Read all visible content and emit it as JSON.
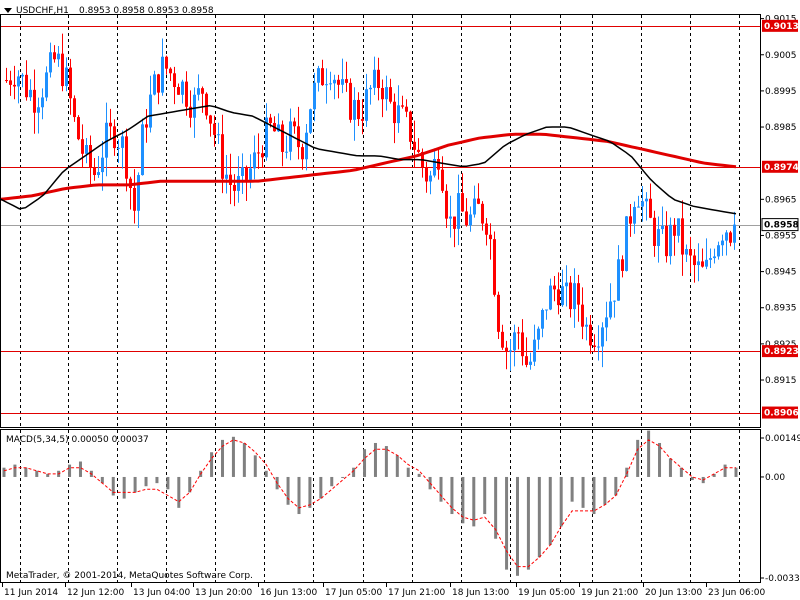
{
  "header": {
    "symbol_label": "USDCHF,H1",
    "ohlc_label": "0.8953 0.8958 0.8953 0.8958",
    "macd_label": "MACD(5,34,5) 0.00050 0.00037",
    "copyright": "MetaTrader, © 2001-2014, MetaQuotes Software Corp."
  },
  "colors": {
    "bull": "#1e90ff",
    "bear": "#ff0000",
    "ma_fast": "#000000",
    "ma_slow": "#e00000",
    "level": "#e00000",
    "grid": "#000000",
    "macd_hist": "#808080",
    "macd_signal": "#ff0000"
  },
  "chart_data": [
    {
      "type": "candlestick",
      "symbol": "USDCHF",
      "timeframe": "H1",
      "ylim": [
        0.8902,
        0.9016
      ],
      "y_ticks": [
        "0.9015",
        "0.9005",
        "0.8995",
        "0.8985",
        "0.8965",
        "0.8955",
        "0.8945",
        "0.8935",
        "0.8925",
        "0.8915"
      ],
      "x_labels": [
        "11 Jun 2014",
        "12 Jun 12:00",
        "13 Jun 04:00",
        "13 Jun 20:00",
        "16 Jun 13:00",
        "17 Jun 05:00",
        "17 Jun 21:00",
        "18 Jun 13:00",
        "19 Jun 05:00",
        "19 Jun 21:00",
        "20 Jun 13:00",
        "23 Jun 06:00"
      ],
      "grid": "vertical dashed",
      "current_price": "0.8958",
      "horizontal_levels": [
        "0.9013",
        "0.8974",
        "0.8923",
        "0.8906"
      ],
      "close_path": [
        0.8998,
        0.9001,
        0.8996,
        0.8993,
        0.8998,
        0.9004,
        0.8999,
        0.8985,
        0.8976,
        0.8972,
        0.8981,
        0.8984,
        0.8979,
        0.8962,
        0.8986,
        0.8996,
        0.9002,
        0.8999,
        0.8996,
        0.8991,
        0.8996,
        0.8985,
        0.8974,
        0.8968,
        0.8969,
        0.8974,
        0.8981,
        0.8985,
        0.8979,
        0.8983,
        0.8979,
        0.8993,
        0.8999,
        0.9002,
        0.8995,
        0.8991,
        0.8989,
        0.8995,
        0.8998,
        0.8991,
        0.8988,
        0.8984,
        0.8976,
        0.897,
        0.8979,
        0.8958,
        0.8962,
        0.8959,
        0.8962,
        0.8959,
        0.8932,
        0.8922,
        0.8929,
        0.8918,
        0.8926,
        0.8938,
        0.8941,
        0.8937,
        0.8938,
        0.8929,
        0.8928,
        0.8935,
        0.8942,
        0.8955,
        0.8969,
        0.8961,
        0.8955,
        0.8952,
        0.8958,
        0.8949,
        0.8946,
        0.8944,
        0.8953,
        0.8958,
        0.8955
      ],
      "ma_fast_path": [
        0.8965,
        0.8962,
        0.8966,
        0.8973,
        0.8977,
        0.8981,
        0.8984,
        0.8988,
        0.8989,
        0.899,
        0.8991,
        0.8989,
        0.8988,
        0.8985,
        0.8982,
        0.8979,
        0.8978,
        0.8977,
        0.8977,
        0.8976,
        0.8976,
        0.8975,
        0.8974,
        0.8975,
        0.898,
        0.8983,
        0.8985,
        0.8985,
        0.8983,
        0.8981,
        0.8977,
        0.897,
        0.8965,
        0.8963,
        0.8962,
        0.8961
      ],
      "ma_slow_path": [
        0.8965,
        0.8966,
        0.8968,
        0.8969,
        0.8969,
        0.897,
        0.897,
        0.897,
        0.897,
        0.8971,
        0.8972,
        0.8973,
        0.8975,
        0.8977,
        0.898,
        0.8982,
        0.8983,
        0.8983,
        0.8982,
        0.8981,
        0.8979,
        0.8977,
        0.8975,
        0.8974
      ]
    },
    {
      "type": "bar",
      "indicator": "MACD(5,34,5)",
      "ylim": [
        -0.0034,
        0.00152
      ],
      "y_ticks": [
        "0.00149",
        "0.00",
        "-0.0033"
      ],
      "values": [
        0.0003,
        0.0004,
        0.0003,
        0.0002,
        0.0001,
        0.0002,
        0.0004,
        0.0005,
        0.0002,
        -0.0002,
        -0.0006,
        -0.0007,
        -0.0005,
        -0.0003,
        -0.0002,
        -0.0004,
        -0.001,
        -0.0005,
        0.0002,
        0.0008,
        0.0012,
        0.0013,
        0.0011,
        0.0007,
        0.0002,
        -0.0004,
        -0.0009,
        -0.0012,
        -0.001,
        -0.0007,
        -0.0003,
        0.0,
        0.0003,
        0.0009,
        0.0011,
        0.001,
        0.0007,
        0.0003,
        0.0001,
        -0.0004,
        -0.0008,
        -0.0012,
        -0.0015,
        -0.0016,
        -0.0012,
        -0.002,
        -0.003,
        -0.0032,
        -0.003,
        -0.0026,
        -0.0022,
        -0.0016,
        -0.0008,
        -0.001,
        -0.0012,
        -0.0009,
        -0.0006,
        0.0003,
        0.0012,
        0.0015,
        0.0011,
        0.0006,
        0.0003,
        -0.0001,
        -0.0002,
        0.0001,
        0.0004,
        0.0003
      ],
      "signal": [
        0.0002,
        0.0003,
        0.0003,
        0.0002,
        0.0001,
        0.0001,
        0.0003,
        0.0003,
        0.0001,
        -0.0002,
        -0.0005,
        -0.0005,
        -0.0005,
        -0.0004,
        -0.0004,
        -0.0006,
        -0.0008,
        -0.0005,
        0.0001,
        0.0006,
        0.001,
        0.0012,
        0.0011,
        0.0008,
        0.0004,
        -0.0002,
        -0.0007,
        -0.001,
        -0.0009,
        -0.0007,
        -0.0004,
        -0.0001,
        0.0002,
        0.0006,
        0.0009,
        0.0009,
        0.0007,
        0.0004,
        0.0002,
        -0.0002,
        -0.0006,
        -0.001,
        -0.0013,
        -0.0014,
        -0.0013,
        -0.0017,
        -0.0024,
        -0.0029,
        -0.0029,
        -0.0026,
        -0.0022,
        -0.0016,
        -0.0011,
        -0.0011,
        -0.0011,
        -0.0009,
        -0.0006,
        0.0001,
        0.0009,
        0.0012,
        0.001,
        0.0006,
        0.0003,
        0.0,
        -0.0001,
        0.0001,
        0.0003,
        0.0003
      ]
    }
  ]
}
